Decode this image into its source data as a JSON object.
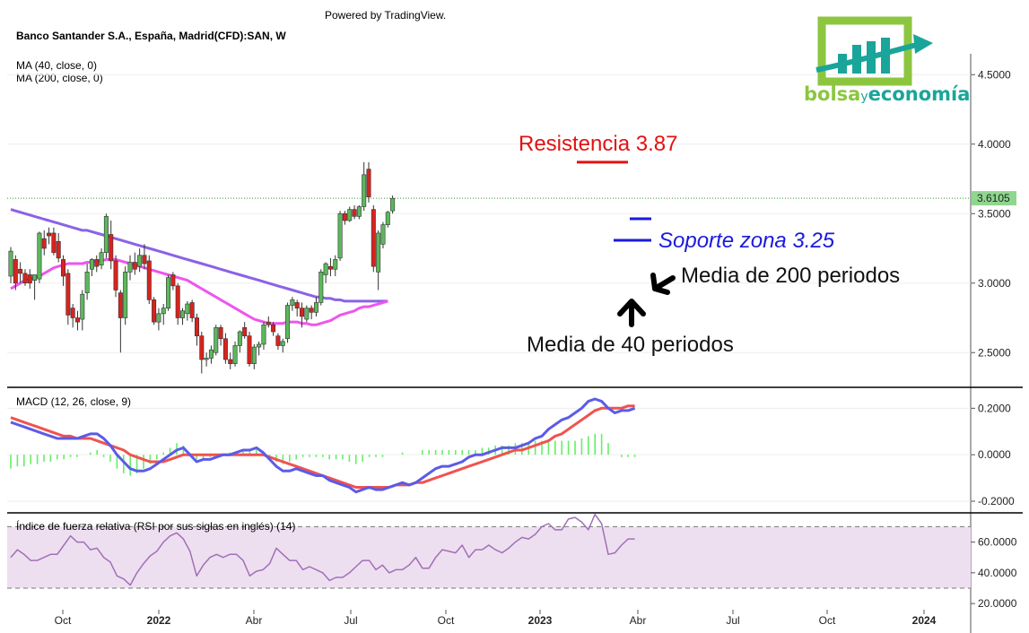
{
  "header": {
    "powered_by": "Powered by TradingView.",
    "symbol": "Banco Santander S.A., España, Madrid(CFD):SAN, W",
    "indicator_ma40": "MA (40, close, 0)",
    "indicator_ma200": "MA (200, close, 0)"
  },
  "logo": {
    "brand_part1": "bolsa",
    "brand_part2": "y",
    "brand_part3": "economía",
    "green": "#8cc63f",
    "teal": "#1aa59a"
  },
  "annotations": {
    "resistance": "Resistencia 3.87",
    "support": "Soporte zona 3.25",
    "ma200_label": "Media de 200 periodos",
    "ma40_label": "Media de 40 periodos"
  },
  "colors": {
    "up": "#5cb85c",
    "down": "#d9231d",
    "ma40": "#ee55ee",
    "ma200": "#8a63e6",
    "macd": "#5b5be8",
    "signal": "#ef5350",
    "hist": "#66ee66",
    "rsi": "#a070b8",
    "rsi_band": "#eedff0",
    "resistance": "#e31212",
    "support": "#1a1add",
    "last_price": "#2e9e2e"
  },
  "chart_data": [
    {
      "type": "line",
      "title": "Banco Santander S.A., España, Madrid(CFD):SAN, W",
      "subtype": "candlestick",
      "y_axis_ticks": [
        "4.5000",
        "4.0000",
        "3.5000",
        "3.0000",
        "2.5000"
      ],
      "ylim": [
        2.25,
        4.65
      ],
      "last_price_label": "3.6105",
      "last_price": 3.6105,
      "resistance_level": 3.87,
      "support_level": 3.25,
      "x_tick_labels": [
        "Oct",
        "2022",
        "Abr",
        "Jul",
        "Oct",
        "2023",
        "Abr",
        "Jul",
        "Oct",
        "2024"
      ],
      "candles": [
        {
          "o": 3.05,
          "h": 3.26,
          "l": 3.0,
          "c": 3.23
        },
        {
          "o": 3.17,
          "h": 3.2,
          "l": 2.95,
          "c": 3.0
        },
        {
          "o": 3.1,
          "h": 3.15,
          "l": 3.0,
          "c": 3.07
        },
        {
          "o": 3.07,
          "h": 3.1,
          "l": 2.98,
          "c": 3.0
        },
        {
          "o": 3.06,
          "h": 3.1,
          "l": 2.96,
          "c": 3.0
        },
        {
          "o": 3.02,
          "h": 3.05,
          "l": 2.88,
          "c": 3.06
        },
        {
          "o": 3.03,
          "h": 3.37,
          "l": 3.0,
          "c": 3.36
        },
        {
          "o": 3.32,
          "h": 3.38,
          "l": 3.2,
          "c": 3.25
        },
        {
          "o": 3.36,
          "h": 3.4,
          "l": 3.28,
          "c": 3.34
        },
        {
          "o": 3.36,
          "h": 3.4,
          "l": 3.2,
          "c": 3.22
        },
        {
          "o": 3.3,
          "h": 3.36,
          "l": 3.15,
          "c": 3.18
        },
        {
          "o": 3.17,
          "h": 3.2,
          "l": 2.98,
          "c": 3.05
        },
        {
          "o": 3.07,
          "h": 3.1,
          "l": 2.7,
          "c": 2.77
        },
        {
          "o": 2.82,
          "h": 2.85,
          "l": 2.68,
          "c": 2.75
        },
        {
          "o": 2.75,
          "h": 2.8,
          "l": 2.66,
          "c": 2.72
        },
        {
          "o": 2.74,
          "h": 2.95,
          "l": 2.66,
          "c": 2.92
        },
        {
          "o": 2.93,
          "h": 3.14,
          "l": 2.88,
          "c": 3.08
        },
        {
          "o": 3.1,
          "h": 3.18,
          "l": 3.05,
          "c": 3.17
        },
        {
          "o": 3.17,
          "h": 3.2,
          "l": 3.08,
          "c": 3.12
        },
        {
          "o": 3.13,
          "h": 3.25,
          "l": 3.1,
          "c": 3.22
        },
        {
          "o": 3.22,
          "h": 3.5,
          "l": 3.18,
          "c": 3.48
        },
        {
          "o": 3.35,
          "h": 3.45,
          "l": 3.1,
          "c": 3.16
        },
        {
          "o": 3.16,
          "h": 3.2,
          "l": 2.9,
          "c": 2.95
        },
        {
          "o": 2.93,
          "h": 2.95,
          "l": 2.5,
          "c": 2.75
        },
        {
          "o": 2.75,
          "h": 3.12,
          "l": 2.7,
          "c": 3.08
        },
        {
          "o": 3.08,
          "h": 3.2,
          "l": 3.02,
          "c": 3.15
        },
        {
          "o": 3.15,
          "h": 3.22,
          "l": 3.06,
          "c": 3.1
        },
        {
          "o": 3.12,
          "h": 3.25,
          "l": 3.08,
          "c": 3.2
        },
        {
          "o": 3.2,
          "h": 3.28,
          "l": 3.1,
          "c": 3.14
        },
        {
          "o": 3.16,
          "h": 3.2,
          "l": 2.85,
          "c": 2.88
        },
        {
          "o": 2.88,
          "h": 2.9,
          "l": 2.7,
          "c": 2.72
        },
        {
          "o": 2.72,
          "h": 2.82,
          "l": 2.66,
          "c": 2.78
        },
        {
          "o": 2.78,
          "h": 2.85,
          "l": 2.7,
          "c": 2.82
        },
        {
          "o": 2.82,
          "h": 3.06,
          "l": 2.8,
          "c": 3.04
        },
        {
          "o": 3.06,
          "h": 3.08,
          "l": 2.95,
          "c": 2.98
        },
        {
          "o": 2.98,
          "h": 3.0,
          "l": 2.7,
          "c": 2.75
        },
        {
          "o": 2.75,
          "h": 2.82,
          "l": 2.7,
          "c": 2.8
        },
        {
          "o": 2.78,
          "h": 2.87,
          "l": 2.73,
          "c": 2.85
        },
        {
          "o": 2.86,
          "h": 2.88,
          "l": 2.72,
          "c": 2.75
        },
        {
          "o": 2.75,
          "h": 2.78,
          "l": 2.55,
          "c": 2.62
        },
        {
          "o": 2.62,
          "h": 2.65,
          "l": 2.35,
          "c": 2.45
        },
        {
          "o": 2.45,
          "h": 2.5,
          "l": 2.4,
          "c": 2.46
        },
        {
          "o": 2.46,
          "h": 2.55,
          "l": 2.42,
          "c": 2.52
        },
        {
          "o": 2.5,
          "h": 2.7,
          "l": 2.48,
          "c": 2.68
        },
        {
          "o": 2.68,
          "h": 2.7,
          "l": 2.55,
          "c": 2.6
        },
        {
          "o": 2.6,
          "h": 2.64,
          "l": 2.42,
          "c": 2.45
        },
        {
          "o": 2.45,
          "h": 2.5,
          "l": 2.38,
          "c": 2.42
        },
        {
          "o": 2.42,
          "h": 2.58,
          "l": 2.4,
          "c": 2.55
        },
        {
          "o": 2.55,
          "h": 2.66,
          "l": 2.5,
          "c": 2.65
        },
        {
          "o": 2.68,
          "h": 2.72,
          "l": 2.6,
          "c": 2.62
        },
        {
          "o": 2.62,
          "h": 2.65,
          "l": 2.4,
          "c": 2.42
        },
        {
          "o": 2.42,
          "h": 2.56,
          "l": 2.38,
          "c": 2.54
        },
        {
          "o": 2.54,
          "h": 2.58,
          "l": 2.48,
          "c": 2.56
        },
        {
          "o": 2.56,
          "h": 2.72,
          "l": 2.52,
          "c": 2.7
        },
        {
          "o": 2.72,
          "h": 2.76,
          "l": 2.68,
          "c": 2.7
        },
        {
          "o": 2.7,
          "h": 2.72,
          "l": 2.62,
          "c": 2.65
        },
        {
          "o": 2.62,
          "h": 2.64,
          "l": 2.52,
          "c": 2.55
        },
        {
          "o": 2.55,
          "h": 2.6,
          "l": 2.5,
          "c": 2.58
        },
        {
          "o": 2.6,
          "h": 2.86,
          "l": 2.57,
          "c": 2.84
        },
        {
          "o": 2.84,
          "h": 2.9,
          "l": 2.8,
          "c": 2.88
        },
        {
          "o": 2.86,
          "h": 2.88,
          "l": 2.76,
          "c": 2.82
        },
        {
          "o": 2.82,
          "h": 2.86,
          "l": 2.68,
          "c": 2.76
        },
        {
          "o": 2.74,
          "h": 2.84,
          "l": 2.72,
          "c": 2.82
        },
        {
          "o": 2.82,
          "h": 2.84,
          "l": 2.74,
          "c": 2.79
        },
        {
          "o": 2.79,
          "h": 2.9,
          "l": 2.76,
          "c": 2.86
        },
        {
          "o": 2.86,
          "h": 3.1,
          "l": 2.84,
          "c": 3.08
        },
        {
          "o": 3.06,
          "h": 3.15,
          "l": 3.0,
          "c": 3.14
        },
        {
          "o": 3.12,
          "h": 3.18,
          "l": 3.05,
          "c": 3.1
        },
        {
          "o": 3.1,
          "h": 3.2,
          "l": 3.05,
          "c": 3.17
        },
        {
          "o": 3.18,
          "h": 3.52,
          "l": 3.16,
          "c": 3.5
        },
        {
          "o": 3.5,
          "h": 3.52,
          "l": 3.42,
          "c": 3.45
        },
        {
          "o": 3.45,
          "h": 3.55,
          "l": 3.44,
          "c": 3.53
        },
        {
          "o": 3.53,
          "h": 3.56,
          "l": 3.46,
          "c": 3.48
        },
        {
          "o": 3.48,
          "h": 3.56,
          "l": 3.46,
          "c": 3.55
        },
        {
          "o": 3.55,
          "h": 3.87,
          "l": 3.52,
          "c": 3.78
        },
        {
          "o": 3.82,
          "h": 3.87,
          "l": 3.58,
          "c": 3.62
        },
        {
          "o": 3.53,
          "h": 3.56,
          "l": 3.08,
          "c": 3.12
        },
        {
          "o": 3.08,
          "h": 3.38,
          "l": 2.95,
          "c": 3.36
        },
        {
          "o": 3.28,
          "h": 3.44,
          "l": 3.25,
          "c": 3.42
        },
        {
          "o": 3.42,
          "h": 3.52,
          "l": 3.4,
          "c": 3.51
        },
        {
          "o": 3.52,
          "h": 3.63,
          "l": 3.5,
          "c": 3.61
        }
      ],
      "ma40": [
        2.96,
        2.98,
        3.0,
        3.02,
        3.03,
        3.04,
        3.05,
        3.07,
        3.09,
        3.11,
        3.12,
        3.13,
        3.14,
        3.14,
        3.14,
        3.14,
        3.15,
        3.15,
        3.16,
        3.16,
        3.17,
        3.17,
        3.17,
        3.16,
        3.15,
        3.14,
        3.13,
        3.12,
        3.11,
        3.1,
        3.09,
        3.08,
        3.07,
        3.06,
        3.05,
        3.04,
        3.03,
        3.02,
        3.0,
        2.98,
        2.96,
        2.94,
        2.92,
        2.9,
        2.88,
        2.86,
        2.84,
        2.82,
        2.8,
        2.78,
        2.76,
        2.74,
        2.73,
        2.72,
        2.71,
        2.71,
        2.71,
        2.71,
        2.72,
        2.72,
        2.72,
        2.71,
        2.71,
        2.7,
        2.7,
        2.71,
        2.72,
        2.73,
        2.75,
        2.77,
        2.78,
        2.79,
        2.8,
        2.82,
        2.83,
        2.83,
        2.84,
        2.85,
        2.86,
        2.87
      ],
      "ma200": [
        3.53,
        3.52,
        3.51,
        3.5,
        3.49,
        3.48,
        3.47,
        3.46,
        3.45,
        3.44,
        3.43,
        3.42,
        3.41,
        3.4,
        3.39,
        3.38,
        3.38,
        3.37,
        3.36,
        3.35,
        3.34,
        3.33,
        3.32,
        3.31,
        3.3,
        3.29,
        3.28,
        3.27,
        3.26,
        3.25,
        3.24,
        3.23,
        3.22,
        3.21,
        3.2,
        3.19,
        3.18,
        3.17,
        3.16,
        3.15,
        3.14,
        3.13,
        3.12,
        3.11,
        3.1,
        3.09,
        3.08,
        3.07,
        3.06,
        3.05,
        3.04,
        3.03,
        3.02,
        3.01,
        3.0,
        2.99,
        2.98,
        2.97,
        2.96,
        2.95,
        2.94,
        2.93,
        2.92,
        2.91,
        2.9,
        2.9,
        2.89,
        2.89,
        2.88,
        2.88,
        2.87,
        2.87,
        2.87,
        2.87,
        2.87,
        2.87,
        2.87,
        2.87,
        2.87,
        2.87
      ]
    },
    {
      "type": "line",
      "title": "MACD (12, 26, close, 9)",
      "y_axis_ticks": [
        "0.2000",
        "0.0000",
        "-0.2000"
      ],
      "ylim": [
        -0.25,
        0.29
      ],
      "macd": [
        0.14,
        0.13,
        0.12,
        0.11,
        0.1,
        0.09,
        0.08,
        0.07,
        0.07,
        0.07,
        0.07,
        0.08,
        0.09,
        0.09,
        0.07,
        0.04,
        0.0,
        -0.03,
        -0.06,
        -0.07,
        -0.07,
        -0.06,
        -0.04,
        -0.02,
        0.0,
        0.02,
        0.03,
        0.0,
        -0.03,
        -0.02,
        -0.02,
        -0.01,
        0.0,
        0.0,
        0.01,
        0.02,
        0.02,
        0.03,
        0.01,
        -0.02,
        -0.05,
        -0.07,
        -0.07,
        -0.06,
        -0.07,
        -0.08,
        -0.09,
        -0.09,
        -0.11,
        -0.12,
        -0.13,
        -0.14,
        -0.16,
        -0.15,
        -0.14,
        -0.15,
        -0.15,
        -0.14,
        -0.13,
        -0.12,
        -0.13,
        -0.12,
        -0.1,
        -0.08,
        -0.06,
        -0.05,
        -0.05,
        -0.04,
        -0.03,
        -0.01,
        0.0,
        0.0,
        0.01,
        0.02,
        0.03,
        0.03,
        0.03,
        0.04,
        0.05,
        0.07,
        0.08,
        0.11,
        0.13,
        0.15,
        0.16,
        0.18,
        0.2,
        0.23,
        0.24,
        0.23,
        0.2,
        0.18,
        0.19,
        0.19,
        0.2
      ],
      "signal": [
        0.16,
        0.15,
        0.14,
        0.13,
        0.12,
        0.11,
        0.1,
        0.09,
        0.08,
        0.08,
        0.07,
        0.07,
        0.07,
        0.06,
        0.05,
        0.04,
        0.03,
        0.02,
        0.0,
        -0.01,
        -0.02,
        -0.03,
        -0.03,
        -0.03,
        -0.02,
        -0.01,
        0.0,
        0.0,
        0.0,
        0.0,
        0.0,
        0.0,
        0.0,
        0.0,
        0.0,
        0.0,
        0.0,
        0.0,
        0.0,
        -0.01,
        -0.02,
        -0.03,
        -0.04,
        -0.05,
        -0.06,
        -0.07,
        -0.08,
        -0.09,
        -0.1,
        -0.11,
        -0.12,
        -0.13,
        -0.14,
        -0.14,
        -0.14,
        -0.14,
        -0.14,
        -0.14,
        -0.13,
        -0.13,
        -0.13,
        -0.12,
        -0.12,
        -0.11,
        -0.1,
        -0.09,
        -0.08,
        -0.07,
        -0.06,
        -0.05,
        -0.04,
        -0.03,
        -0.02,
        -0.01,
        0.0,
        0.01,
        0.02,
        0.02,
        0.03,
        0.04,
        0.05,
        0.06,
        0.08,
        0.09,
        0.11,
        0.13,
        0.15,
        0.17,
        0.19,
        0.2,
        0.2,
        0.2,
        0.2,
        0.21,
        0.21
      ],
      "histogram": [
        -0.06,
        -0.05,
        -0.05,
        -0.04,
        -0.04,
        -0.03,
        -0.03,
        -0.02,
        -0.02,
        -0.01,
        -0.01,
        0.0,
        0.01,
        0.02,
        -0.01,
        -0.03,
        -0.06,
        -0.08,
        -0.09,
        -0.08,
        -0.06,
        -0.04,
        -0.02,
        0.01,
        0.03,
        0.05,
        0.04,
        0.0,
        -0.02,
        -0.02,
        -0.01,
        -0.01,
        0.0,
        0.01,
        0.01,
        0.02,
        0.02,
        0.02,
        0.0,
        -0.02,
        -0.03,
        -0.04,
        -0.03,
        -0.02,
        -0.01,
        -0.01,
        -0.01,
        -0.01,
        -0.02,
        -0.02,
        -0.02,
        -0.03,
        -0.04,
        -0.03,
        -0.01,
        -0.01,
        -0.01,
        0.0,
        0.0,
        0.01,
        0.0,
        0.0,
        0.02,
        0.02,
        0.02,
        0.02,
        0.02,
        0.02,
        0.02,
        0.02,
        0.02,
        0.03,
        0.03,
        0.04,
        0.04,
        0.04,
        0.05,
        0.05,
        0.05,
        0.06,
        0.06,
        0.06,
        0.06,
        0.06,
        0.06,
        0.06,
        0.07,
        0.08,
        0.09,
        0.09,
        0.05,
        0.0,
        -0.01,
        -0.01,
        -0.01
      ]
    },
    {
      "type": "line",
      "title": "Índice de fuerza relativa (RSI por sus siglas en inglés) (14)",
      "y_axis_ticks": [
        "60.0000",
        "40.0000",
        "20.0000"
      ],
      "ylim": [
        16,
        79
      ],
      "band": [
        30,
        70
      ],
      "rsi": [
        50,
        55,
        52,
        48,
        48,
        50,
        52,
        52,
        58,
        64,
        60,
        60,
        55,
        56,
        50,
        47,
        38,
        36,
        32,
        40,
        46,
        51,
        54,
        60,
        64,
        66,
        62,
        54,
        38,
        45,
        50,
        52,
        50,
        52,
        52,
        48,
        38,
        41,
        42,
        46,
        56,
        52,
        48,
        48,
        42,
        44,
        42,
        40,
        35,
        37,
        37,
        40,
        44,
        48,
        48,
        42,
        45,
        40,
        42,
        42,
        45,
        50,
        43,
        43,
        50,
        55,
        54,
        53,
        58,
        50,
        55,
        55,
        58,
        55,
        53,
        56,
        60,
        63,
        62,
        65,
        70,
        72,
        68,
        68,
        75,
        76,
        73,
        68,
        78,
        72,
        52,
        53,
        58,
        62,
        62
      ]
    },
    {
      "type": "line",
      "title": "",
      "x_tick_labels": [
        "Oct",
        "2022",
        "Abr",
        "Jul",
        "Oct",
        "2023",
        "Abr",
        "Jul",
        "Oct",
        "2024"
      ]
    }
  ]
}
